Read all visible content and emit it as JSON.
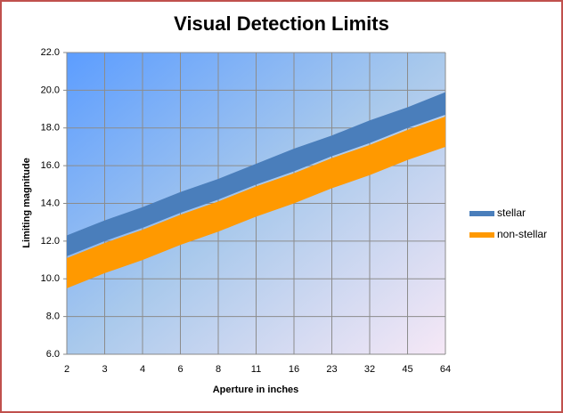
{
  "chart_data": {
    "type": "area",
    "title": "Visual Detection Limits",
    "x_label": "Aperture in inches",
    "y_label": "Limiting magnitude",
    "categories": [
      "2",
      "3",
      "4",
      "6",
      "8",
      "11",
      "16",
      "23",
      "32",
      "45",
      "64"
    ],
    "series": [
      {
        "name": "stellar",
        "color": "#4a7ebb",
        "high": [
          12.3,
          13.1,
          13.8,
          14.6,
          15.3,
          16.1,
          16.9,
          17.6,
          18.4,
          19.1,
          19.9
        ],
        "low": [
          11.2,
          12.0,
          12.7,
          13.5,
          14.2,
          15.0,
          15.7,
          16.5,
          17.2,
          18.0,
          18.7
        ]
      },
      {
        "name": "non-stellar",
        "color": "#ff9900",
        "high": [
          11.1,
          11.9,
          12.6,
          13.4,
          14.1,
          14.9,
          15.6,
          16.4,
          17.1,
          17.9,
          18.6
        ],
        "low": [
          9.5,
          10.3,
          11.0,
          11.8,
          12.5,
          13.3,
          14.0,
          14.8,
          15.5,
          16.3,
          17.0
        ]
      }
    ],
    "ylim": [
      6,
      22
    ],
    "yticks": [
      {
        "value": 6,
        "label": "6.0"
      },
      {
        "value": 8,
        "label": "8.0"
      },
      {
        "value": 10,
        "label": "10.0"
      },
      {
        "value": 12,
        "label": "12.0"
      },
      {
        "value": 14,
        "label": "14.0"
      },
      {
        "value": 16,
        "label": "16.0"
      },
      {
        "value": 18,
        "label": "18.0"
      },
      {
        "value": 20,
        "label": "20.0"
      },
      {
        "value": 22,
        "label": "22.0"
      }
    ],
    "grid": true,
    "legend": "right"
  }
}
